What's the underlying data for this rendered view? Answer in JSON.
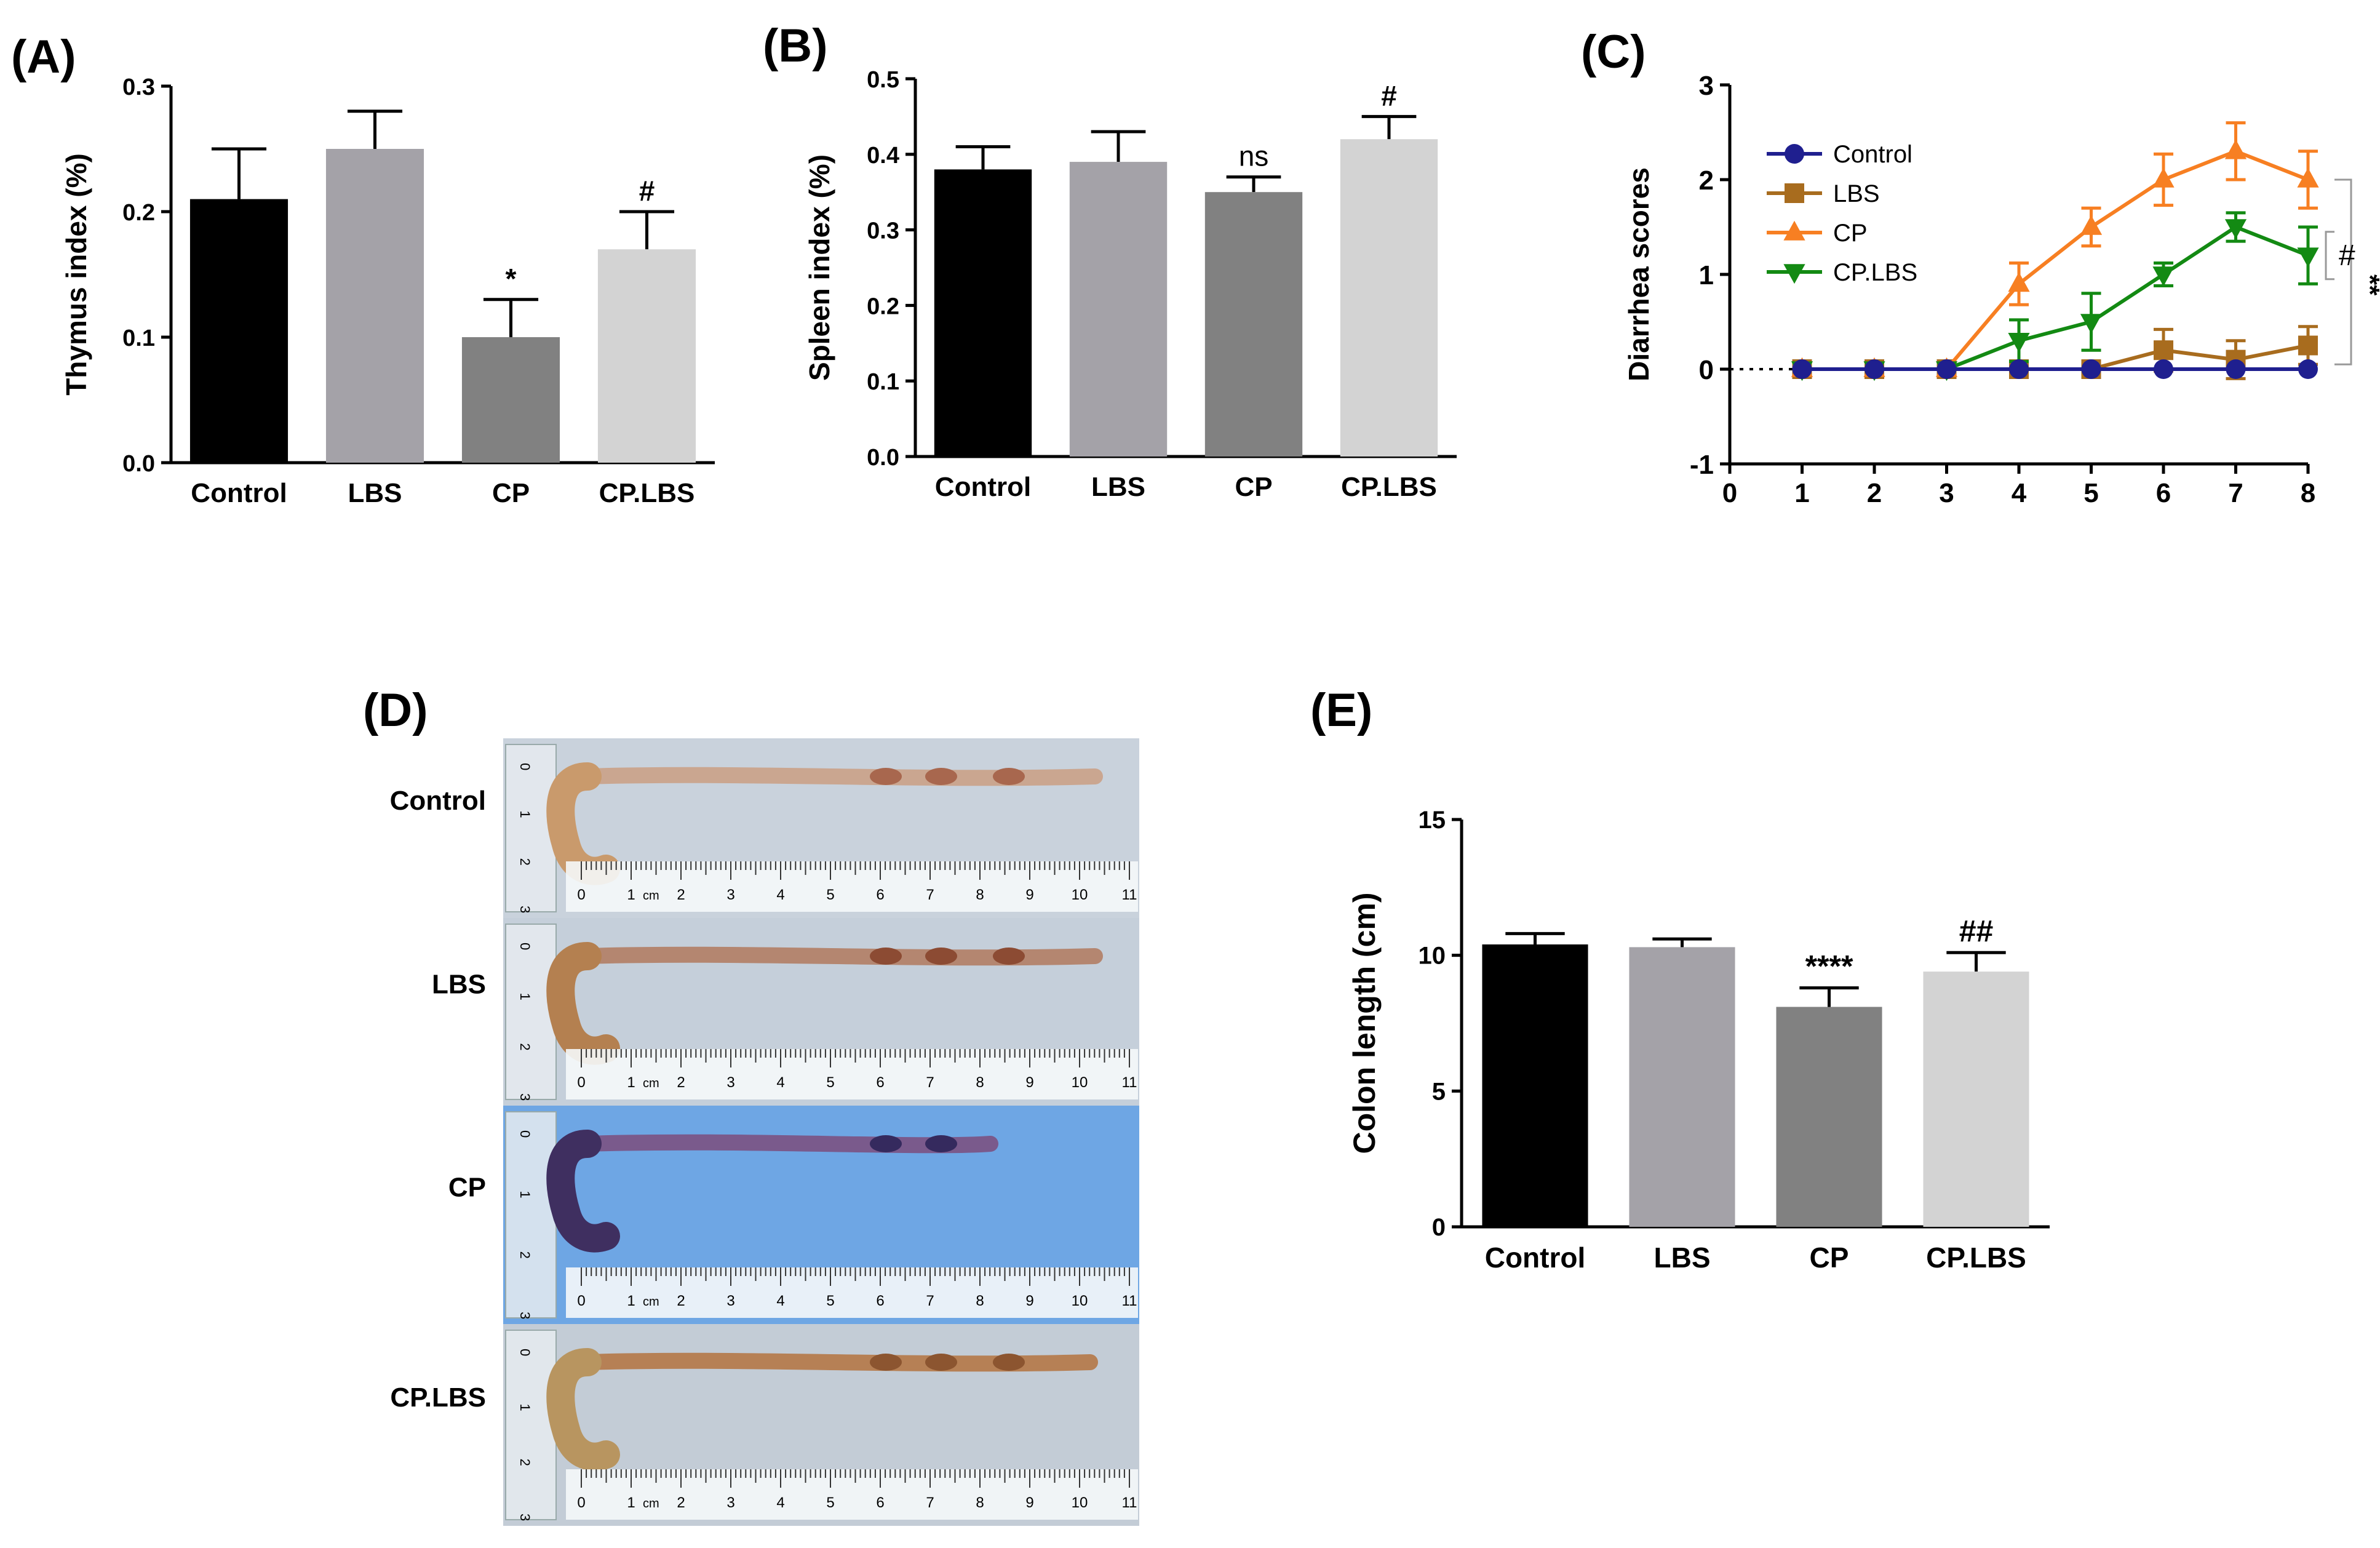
{
  "chart_data": [
    {
      "panel": "(A)",
      "type": "bar",
      "categories": [
        "Control",
        "LBS",
        "CP",
        "CP.LBS"
      ],
      "values": [
        0.21,
        0.25,
        0.1,
        0.17
      ],
      "errors": [
        0.04,
        0.03,
        0.03,
        0.03
      ],
      "annotations": [
        "",
        "",
        "*",
        "#"
      ],
      "ylabel": "Thymus index (%)",
      "ylim": [
        0,
        0.3
      ],
      "yticks": [
        "0.0",
        "0.1",
        "0.2",
        "0.3"
      ],
      "colors": [
        "#000000",
        "#a4a2a8",
        "#818181",
        "#d3d3d3"
      ]
    },
    {
      "panel": "(B)",
      "type": "bar",
      "categories": [
        "Control",
        "LBS",
        "CP",
        "CP.LBS"
      ],
      "values": [
        0.38,
        0.39,
        0.35,
        0.42
      ],
      "errors": [
        0.03,
        0.04,
        0.02,
        0.03
      ],
      "annotations": [
        "",
        "",
        "ns",
        "#"
      ],
      "ylabel": "Spleen index (%)",
      "ylim": [
        0,
        0.5
      ],
      "yticks": [
        "0.0",
        "0.1",
        "0.2",
        "0.3",
        "0.4",
        "0.5"
      ],
      "colors": [
        "#000000",
        "#a4a2a8",
        "#818181",
        "#d3d3d3"
      ]
    },
    {
      "panel": "(C)",
      "type": "line",
      "x": [
        1,
        2,
        3,
        4,
        5,
        6,
        7,
        8
      ],
      "ylabel": "Diarrhea scores",
      "ylim": [
        -1,
        3
      ],
      "xlim": [
        0,
        8
      ],
      "xticks": [
        "0",
        "1",
        "2",
        "3",
        "4",
        "5",
        "6",
        "7",
        "8"
      ],
      "yticks": [
        "-1",
        "0",
        "1",
        "2",
        "3"
      ],
      "series": [
        {
          "name": "Control",
          "color": "#1f1f8f",
          "marker": "circle",
          "values": [
            0,
            0,
            0,
            0,
            0,
            0,
            0,
            0
          ],
          "errors": [
            0,
            0,
            0,
            0,
            0,
            0,
            0,
            0
          ]
        },
        {
          "name": "LBS",
          "color": "#a86c1e",
          "marker": "square",
          "values": [
            0,
            0,
            0,
            0,
            0,
            0.2,
            0.1,
            0.25
          ],
          "errors": [
            0,
            0,
            0,
            0,
            0,
            0.22,
            0.2,
            0.2
          ]
        },
        {
          "name": "CP",
          "color": "#f77f22",
          "marker": "triangle-up",
          "values": [
            0,
            0,
            0,
            0.9,
            1.5,
            2.0,
            2.3,
            2.0
          ],
          "errors": [
            0,
            0,
            0,
            0.22,
            0.2,
            0.27,
            0.3,
            0.3
          ]
        },
        {
          "name": "CP.LBS",
          "color": "#138a13",
          "marker": "triangle-down",
          "values": [
            0,
            0,
            0,
            0.3,
            0.5,
            1.0,
            1.5,
            1.2
          ],
          "errors": [
            0,
            0,
            0,
            0.22,
            0.3,
            0.12,
            0.15,
            0.3
          ]
        }
      ],
      "significance": [
        "#",
        "**"
      ]
    },
    {
      "panel": "(E)",
      "type": "bar",
      "categories": [
        "Control",
        "LBS",
        "CP",
        "CP.LBS"
      ],
      "values": [
        10.4,
        10.3,
        8.1,
        9.4
      ],
      "errors": [
        0.4,
        0.3,
        0.7,
        0.7
      ],
      "annotations": [
        "",
        "",
        "****",
        "##"
      ],
      "ylabel": "Colon length (cm)",
      "ylim": [
        0,
        15
      ],
      "yticks": [
        "0",
        "5",
        "10",
        "15"
      ],
      "colors": [
        "#000000",
        "#a4a2a8",
        "#818181",
        "#d3d3d3"
      ]
    }
  ],
  "photo_panel": {
    "panel": "(D)",
    "rows": [
      "Control",
      "LBS",
      "CP",
      "CP.LBS"
    ],
    "ruler_numbers": [
      "0",
      "1",
      "2",
      "3",
      "4",
      "5",
      "6",
      "7",
      "8",
      "9",
      "10",
      "11"
    ],
    "ruler_unit": "cm",
    "vertical_ruler_numbers": [
      "0",
      "1",
      "2",
      "3"
    ]
  }
}
